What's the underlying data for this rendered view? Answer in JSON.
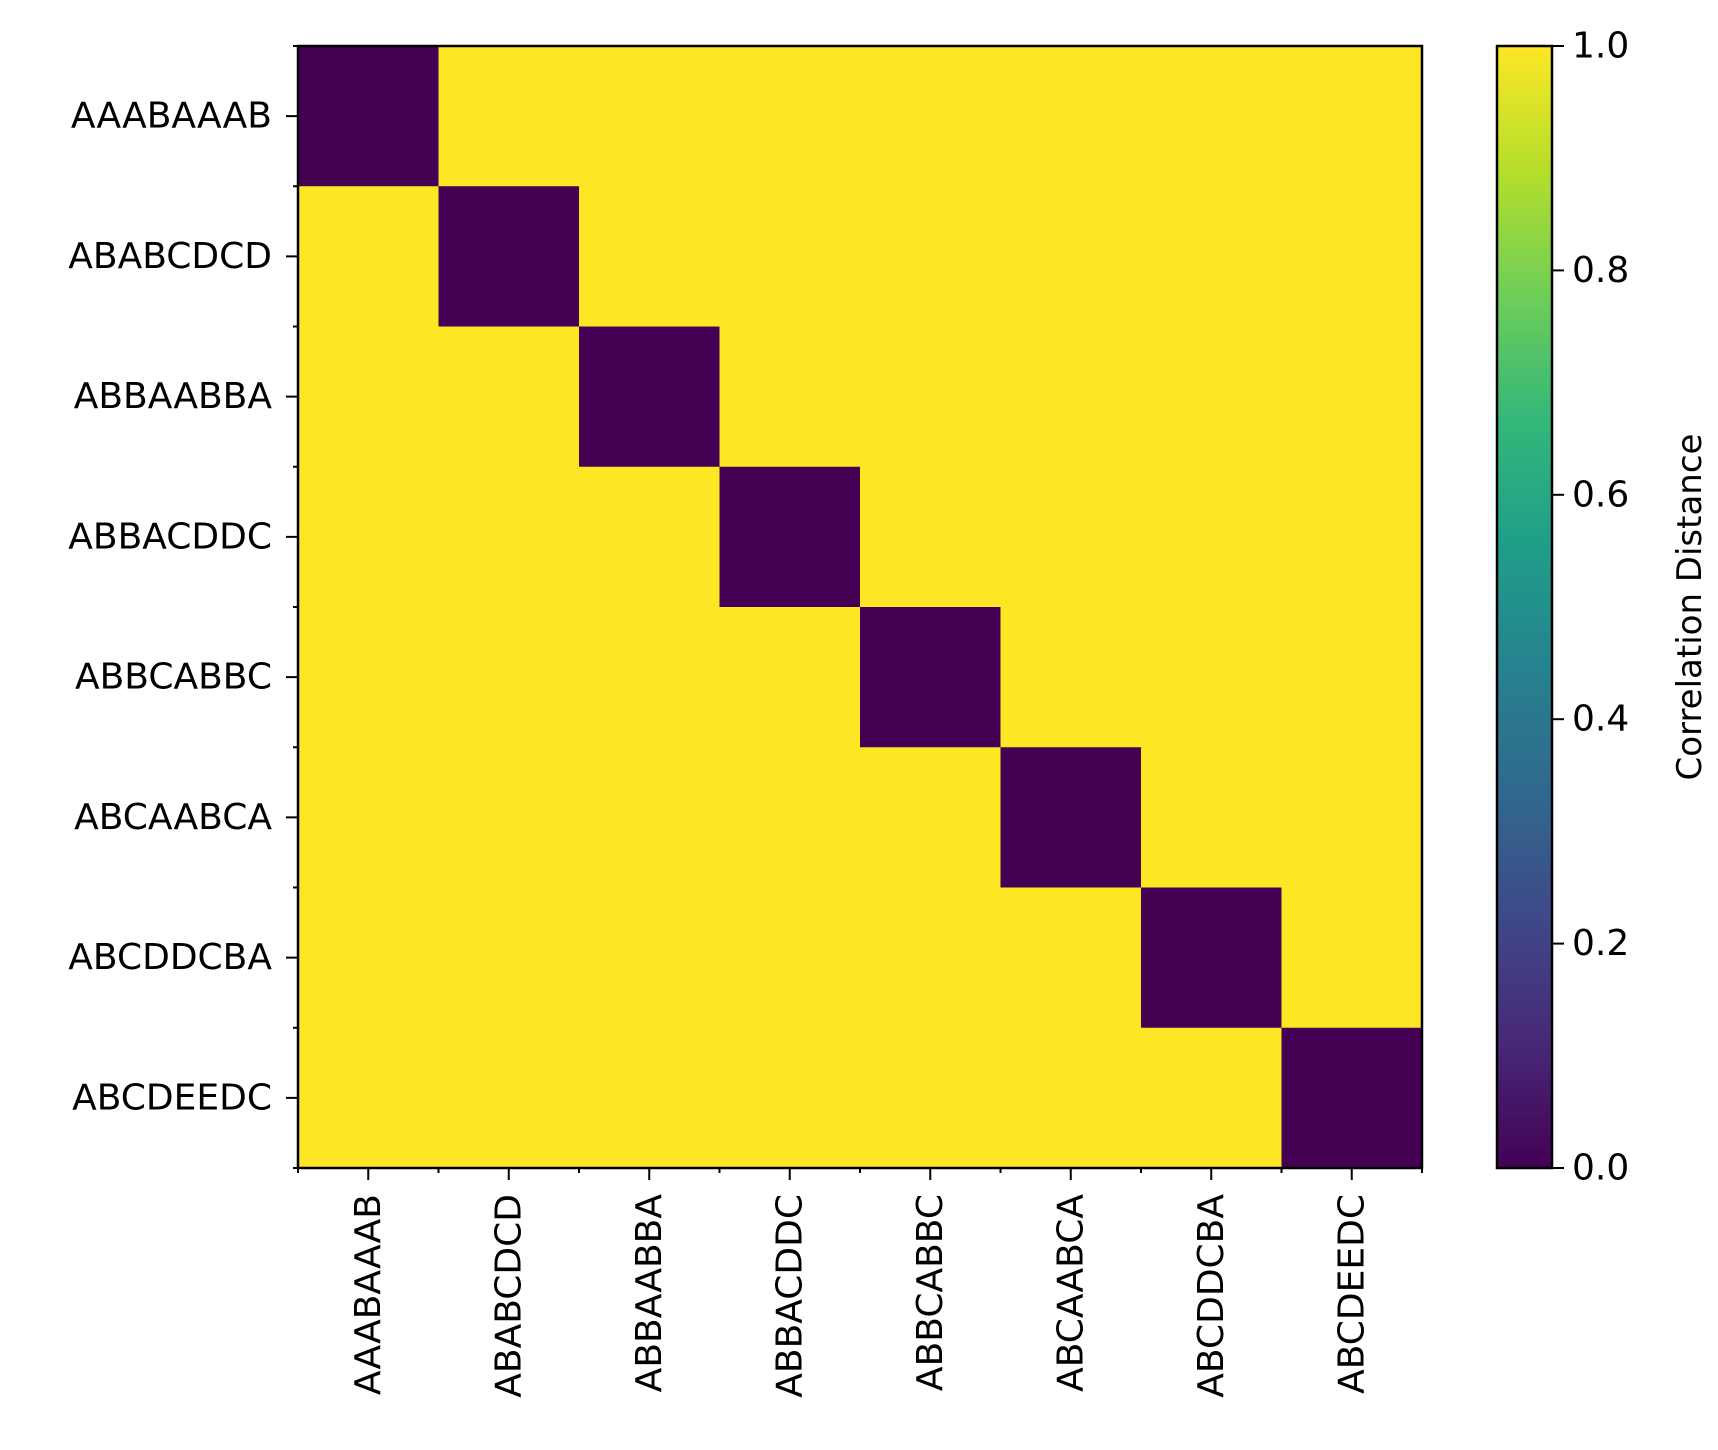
{
  "chart_data": {
    "type": "heatmap",
    "title": "",
    "xlabel": "",
    "ylabel": "",
    "categories": [
      "AAABAAAB",
      "ABABCDCD",
      "ABBAABBA",
      "ABBACDDC",
      "ABBCABBC",
      "ABCAABCA",
      "ABCDDCBA",
      "ABCDEEDC"
    ],
    "matrix": [
      [
        0,
        1,
        1,
        1,
        1,
        1,
        1,
        1
      ],
      [
        1,
        0,
        1,
        1,
        1,
        1,
        1,
        1
      ],
      [
        1,
        1,
        0,
        1,
        1,
        1,
        1,
        1
      ],
      [
        1,
        1,
        1,
        0,
        1,
        1,
        1,
        1
      ],
      [
        1,
        1,
        1,
        1,
        0,
        1,
        1,
        1
      ],
      [
        1,
        1,
        1,
        1,
        1,
        0,
        1,
        1
      ],
      [
        1,
        1,
        1,
        1,
        1,
        1,
        0,
        1
      ],
      [
        1,
        1,
        1,
        1,
        1,
        1,
        1,
        0
      ]
    ],
    "colormap": "viridis",
    "vmin": 0.0,
    "vmax": 1.0,
    "colorbar": {
      "label": "Correlation Distance",
      "ticks": [
        0.0,
        0.2,
        0.4,
        0.6,
        0.8,
        1.0
      ],
      "tick_labels": [
        "0.0",
        "0.2",
        "0.4",
        "0.6",
        "0.8",
        "1.0"
      ]
    },
    "viridis_stops": [
      "#440154",
      "#482878",
      "#3e4989",
      "#31688e",
      "#26828e",
      "#1f9e89",
      "#35b779",
      "#6ece58",
      "#b5de2b",
      "#fde725"
    ]
  }
}
